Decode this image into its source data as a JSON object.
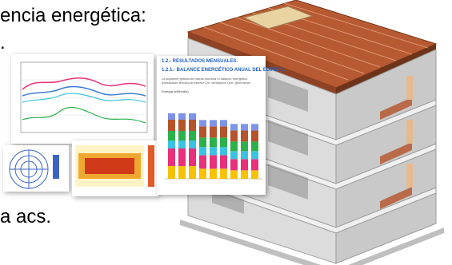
{
  "slide": {
    "line1": "encia energética:",
    "line2": ".",
    "line3": "a acs."
  },
  "doc": {
    "heading1": "1.2.- RESULTADOS MENSUALES.",
    "heading2": "1.2.1.- BALANCE ENERGÉTICO ANUAL DEL EDIFICIO.",
    "body": "La siguiente gráfica de barras muestra el balance energético transmisión térmica al exterior Qtr, ventilación Qve, generación",
    "chart_title": "Energía (kWh/año)"
  },
  "colors": {
    "bar_series": [
      "#f6c200",
      "#e8317a",
      "#3ac3e0",
      "#2bb04a",
      "#b5532a",
      "#7d93e8"
    ],
    "building_concrete": "#d9d9d9",
    "roof_tile": "#b75a32"
  }
}
